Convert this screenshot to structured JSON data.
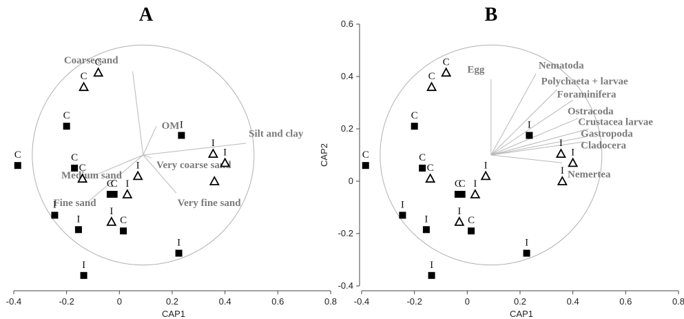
{
  "chart_data": [
    {
      "type": "scatter",
      "panel_title": "A",
      "xlabel": "CAP1",
      "ylabel": "",
      "xlim": [
        -0.4,
        0.8
      ],
      "ylim": [
        -0.4,
        0.6
      ],
      "xticks": [
        "-0.4",
        "-0.2",
        "0",
        "0.2",
        "0.4",
        "0.6",
        "0.8"
      ],
      "yticks": [],
      "circle": {
        "cx": 0.09,
        "cy": 0.1,
        "r": 0.42
      },
      "vector_origin": [
        0.09,
        0.1
      ],
      "series": [
        {
          "marker": "filled-square",
          "color": "#000000",
          "points": [
            {
              "x": -0.385,
              "y": 0.06,
              "label": "C"
            },
            {
              "x": -0.2,
              "y": 0.21,
              "label": "C"
            },
            {
              "x": -0.17,
              "y": 0.05,
              "label": "C"
            },
            {
              "x": -0.245,
              "y": -0.13,
              "label": "I"
            },
            {
              "x": -0.155,
              "y": -0.185,
              "label": "I"
            },
            {
              "x": -0.035,
              "y": -0.05,
              "label": "C"
            },
            {
              "x": -0.02,
              "y": -0.05,
              "label": "C"
            },
            {
              "x": 0.015,
              "y": -0.19,
              "label": "C"
            },
            {
              "x": -0.135,
              "y": -0.36,
              "label": "I"
            },
            {
              "x": 0.225,
              "y": -0.275,
              "label": "I"
            },
            {
              "x": 0.235,
              "y": 0.175,
              "label": "I"
            }
          ]
        },
        {
          "marker": "open-triangle",
          "color": "#000000",
          "points": [
            {
              "x": -0.08,
              "y": 0.415,
              "label": "C"
            },
            {
              "x": -0.135,
              "y": 0.36,
              "label": "C"
            },
            {
              "x": -0.14,
              "y": 0.01,
              "label": "C"
            },
            {
              "x": 0.03,
              "y": -0.05,
              "label": "I"
            },
            {
              "x": -0.03,
              "y": -0.155,
              "label": "I"
            },
            {
              "x": 0.07,
              "y": 0.02,
              "label": "I"
            },
            {
              "x": 0.355,
              "y": 0.105,
              "label": "I"
            },
            {
              "x": 0.4,
              "y": 0.07,
              "label": "I"
            },
            {
              "x": 0.36,
              "y": 0.0,
              "label": ""
            }
          ]
        }
      ],
      "vectors": [
        {
          "label": "Coarse sand",
          "end": [
            0.05,
            0.42
          ]
        },
        {
          "label": "OM",
          "end": [
            0.14,
            0.21
          ]
        },
        {
          "label": "Silt and clay",
          "end": [
            0.48,
            0.145
          ]
        },
        {
          "label": "Very coarse sand",
          "end": [
            0.12,
            0.09
          ]
        },
        {
          "label": "Medium sand",
          "end": [
            -0.1,
            0.02
          ]
        },
        {
          "label": "Fine sand",
          "end": [
            -0.12,
            -0.08
          ]
        },
        {
          "label": "Very fine sand",
          "end": [
            0.215,
            -0.045
          ]
        }
      ],
      "vector_labels": [
        {
          "label": "Coarse sand",
          "at": [
            -0.21,
            0.45
          ]
        },
        {
          "label": "OM",
          "at": [
            0.16,
            0.2
          ]
        },
        {
          "label": "Silt and clay",
          "at": [
            0.49,
            0.17
          ]
        },
        {
          "label": "Very coarse sand",
          "at": [
            0.14,
            0.05
          ]
        },
        {
          "label": "Medium sand",
          "at": [
            -0.22,
            0.01
          ]
        },
        {
          "label": "Fine sand",
          "at": [
            -0.25,
            -0.095
          ]
        },
        {
          "label": "Very fine sand",
          "at": [
            0.22,
            -0.095
          ]
        }
      ]
    },
    {
      "type": "scatter",
      "panel_title": "B",
      "xlabel": "CAP1",
      "ylabel": "CAP2",
      "xlim": [
        -0.4,
        0.8
      ],
      "ylim": [
        -0.4,
        0.6
      ],
      "xticks": [
        "-0.4",
        "-0.2",
        "0",
        "0.2",
        "0.4",
        "0.6",
        "0.8"
      ],
      "yticks": [
        "-0.4",
        "-0.2",
        "0",
        "0.2",
        "0.4",
        "0.6"
      ],
      "circle": {
        "cx": 0.09,
        "cy": 0.1,
        "r": 0.42
      },
      "vector_origin": [
        0.09,
        0.1
      ],
      "series": [
        {
          "marker": "filled-square",
          "color": "#000000",
          "points": [
            {
              "x": -0.385,
              "y": 0.06,
              "label": "C"
            },
            {
              "x": -0.2,
              "y": 0.21,
              "label": "C"
            },
            {
              "x": -0.17,
              "y": 0.05,
              "label": "C"
            },
            {
              "x": -0.245,
              "y": -0.13,
              "label": "I"
            },
            {
              "x": -0.155,
              "y": -0.185,
              "label": "I"
            },
            {
              "x": -0.035,
              "y": -0.05,
              "label": "C"
            },
            {
              "x": -0.02,
              "y": -0.05,
              "label": "C"
            },
            {
              "x": 0.015,
              "y": -0.19,
              "label": "C"
            },
            {
              "x": -0.135,
              "y": -0.36,
              "label": "I"
            },
            {
              "x": 0.225,
              "y": -0.275,
              "label": "I"
            },
            {
              "x": 0.235,
              "y": 0.175,
              "label": "I"
            }
          ]
        },
        {
          "marker": "open-triangle",
          "color": "#000000",
          "points": [
            {
              "x": -0.08,
              "y": 0.415,
              "label": "C"
            },
            {
              "x": -0.135,
              "y": 0.36,
              "label": "C"
            },
            {
              "x": -0.14,
              "y": 0.01,
              "label": "C"
            },
            {
              "x": 0.03,
              "y": -0.05,
              "label": "I"
            },
            {
              "x": -0.03,
              "y": -0.155,
              "label": "I"
            },
            {
              "x": 0.07,
              "y": 0.02,
              "label": "I"
            },
            {
              "x": 0.355,
              "y": 0.105,
              "label": "I"
            },
            {
              "x": 0.4,
              "y": 0.07,
              "label": "I"
            },
            {
              "x": 0.36,
              "y": 0.0,
              "label": "I"
            }
          ]
        }
      ],
      "vectors": [
        {
          "label": "Egg",
          "end": [
            0.09,
            0.39
          ]
        },
        {
          "label": "Nematoda",
          "end": [
            0.26,
            0.41
          ]
        },
        {
          "label": "Polychaeta + larvae",
          "end": [
            0.34,
            0.35
          ]
        },
        {
          "label": "Foraminifera",
          "end": [
            0.4,
            0.31
          ]
        },
        {
          "label": "Ostracoda",
          "end": [
            0.42,
            0.24
          ]
        },
        {
          "label": "Crustacea larvae",
          "end": [
            0.46,
            0.2
          ]
        },
        {
          "label": "Gastropoda",
          "end": [
            0.45,
            0.17
          ]
        },
        {
          "label": "Cladocera",
          "end": [
            0.44,
            0.15
          ]
        },
        {
          "label": "Nemertea",
          "end": [
            0.36,
            0.07
          ]
        }
      ],
      "vector_labels": [
        {
          "label": "Egg",
          "at": [
            0.0,
            0.415
          ]
        },
        {
          "label": "Nematoda",
          "at": [
            0.27,
            0.43
          ]
        },
        {
          "label": "Polychaeta + larvae",
          "at": [
            0.28,
            0.37
          ]
        },
        {
          "label": "Foraminifera",
          "at": [
            0.34,
            0.32
          ]
        },
        {
          "label": "Ostracoda",
          "at": [
            0.38,
            0.255
          ]
        },
        {
          "label": "Crustacea larvae",
          "at": [
            0.42,
            0.215
          ]
        },
        {
          "label": "Gastropoda",
          "at": [
            0.43,
            0.17
          ]
        },
        {
          "label": "Cladocera",
          "at": [
            0.43,
            0.125
          ]
        },
        {
          "label": "Nemertea",
          "at": [
            0.38,
            0.015
          ]
        }
      ]
    }
  ]
}
